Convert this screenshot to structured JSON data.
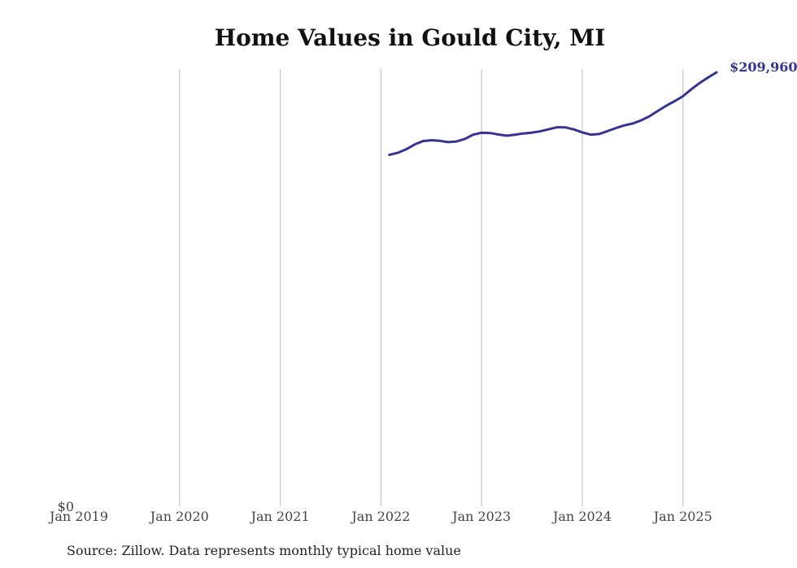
{
  "chart_data": {
    "type": "line",
    "title": "Home Values in Gould City, MI",
    "source": "Source: Zillow. Data represents monthly typical home value",
    "xlabel": "",
    "ylabel": "",
    "x_ticks": [
      "Jan 2019",
      "Jan 2020",
      "Jan 2021",
      "Jan 2022",
      "Jan 2023",
      "Jan 2024",
      "Jan 2025"
    ],
    "y_ticks": [
      "$0"
    ],
    "ylim": [
      0,
      209960
    ],
    "grid": "vertical",
    "line_color": "#36348f",
    "grid_color": "#bbbbbb",
    "end_label": "$209,960",
    "series": [
      {
        "points": [
          {
            "x": "2022-02",
            "y": 170000
          },
          {
            "x": "2022-03",
            "y": 171000
          },
          {
            "x": "2022-04",
            "y": 172700
          },
          {
            "x": "2022-05",
            "y": 175000
          },
          {
            "x": "2022-06",
            "y": 176700
          },
          {
            "x": "2022-07",
            "y": 177100
          },
          {
            "x": "2022-08",
            "y": 176800
          },
          {
            "x": "2022-09",
            "y": 176200
          },
          {
            "x": "2022-10",
            "y": 176500
          },
          {
            "x": "2022-11",
            "y": 177700
          },
          {
            "x": "2022-12",
            "y": 179800
          },
          {
            "x": "2023-01",
            "y": 180700
          },
          {
            "x": "2023-02",
            "y": 180600
          },
          {
            "x": "2023-03",
            "y": 179900
          },
          {
            "x": "2023-04",
            "y": 179300
          },
          {
            "x": "2023-05",
            "y": 179800
          },
          {
            "x": "2023-06",
            "y": 180400
          },
          {
            "x": "2023-07",
            "y": 180800
          },
          {
            "x": "2023-08",
            "y": 181400
          },
          {
            "x": "2023-09",
            "y": 182400
          },
          {
            "x": "2023-10",
            "y": 183400
          },
          {
            "x": "2023-11",
            "y": 183300
          },
          {
            "x": "2023-12",
            "y": 182300
          },
          {
            "x": "2024-01",
            "y": 180900
          },
          {
            "x": "2024-02",
            "y": 179800
          },
          {
            "x": "2024-03",
            "y": 180100
          },
          {
            "x": "2024-04",
            "y": 181500
          },
          {
            "x": "2024-05",
            "y": 183000
          },
          {
            "x": "2024-06",
            "y": 184300
          },
          {
            "x": "2024-07",
            "y": 185200
          },
          {
            "x": "2024-08",
            "y": 186700
          },
          {
            "x": "2024-09",
            "y": 188700
          },
          {
            "x": "2024-10",
            "y": 191300
          },
          {
            "x": "2024-11",
            "y": 193800
          },
          {
            "x": "2024-12",
            "y": 196000
          },
          {
            "x": "2025-01",
            "y": 198400
          },
          {
            "x": "2025-02",
            "y": 201800
          },
          {
            "x": "2025-03",
            "y": 204800
          },
          {
            "x": "2025-04",
            "y": 207500
          },
          {
            "x": "2025-05",
            "y": 209960
          }
        ]
      }
    ]
  }
}
